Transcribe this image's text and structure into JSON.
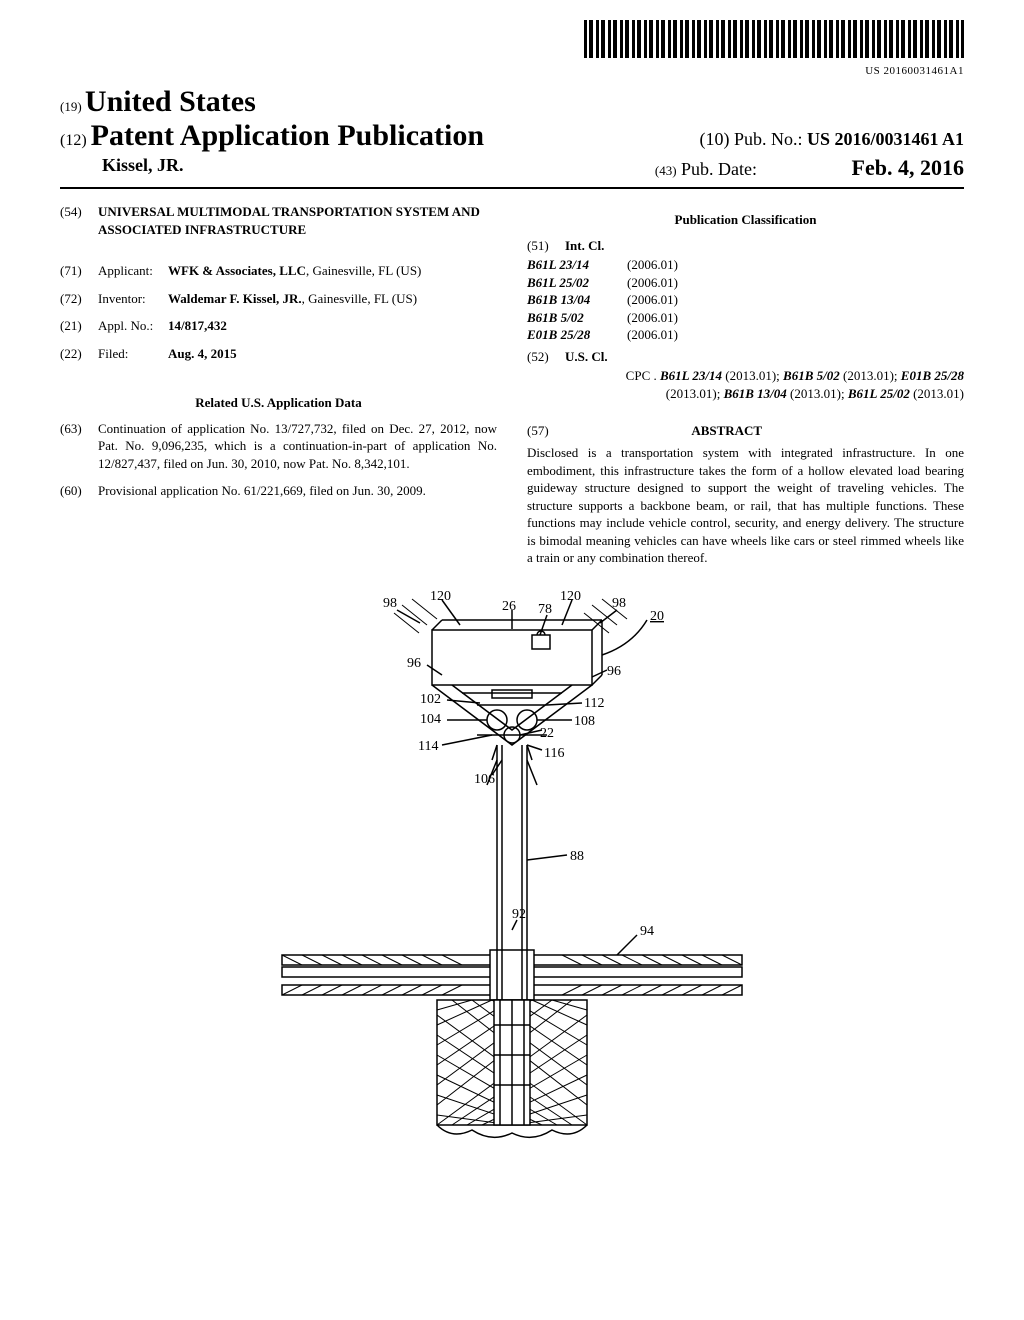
{
  "barcode_label": "US 20160031461A1",
  "header": {
    "prefix19": "(19)",
    "country": "United States",
    "prefix12": "(12)",
    "pub_type": "Patent Application Publication",
    "author": "Kissel, JR.",
    "prefix10": "(10)",
    "pub_no_label": "Pub. No.:",
    "pub_no": "US 2016/0031461 A1",
    "prefix43": "(43)",
    "pub_date_label": "Pub. Date:",
    "pub_date": "Feb. 4, 2016"
  },
  "fields": {
    "n54": "(54)",
    "title": "UNIVERSAL MULTIMODAL TRANSPORTATION SYSTEM AND ASSOCIATED INFRASTRUCTURE",
    "n71": "(71)",
    "applicant_label": "Applicant:",
    "applicant": "WFK & Associates, LLC",
    "applicant_loc": ", Gainesville, FL (US)",
    "n72": "(72)",
    "inventor_label": "Inventor:",
    "inventor": "Waldemar F. Kissel, JR.",
    "inventor_loc": ", Gainesville, FL (US)",
    "n21": "(21)",
    "appl_label": "Appl. No.:",
    "appl_no": "14/817,432",
    "n22": "(22)",
    "filed_label": "Filed:",
    "filed": "Aug. 4, 2015",
    "related_heading": "Related U.S. Application Data",
    "n63": "(63)",
    "related63": "Continuation of application No. 13/727,732, filed on Dec. 27, 2012, now Pat. No. 9,096,235, which is a continuation-in-part of application No. 12/827,437, filed on Jun. 30, 2010, now Pat. No. 8,342,101.",
    "n60": "(60)",
    "related60": "Provisional application No. 61/221,669, filed on Jun. 30, 2009."
  },
  "classification": {
    "heading": "Publication Classification",
    "n51": "(51)",
    "intcl_label": "Int. Cl.",
    "rows": [
      {
        "code": "B61L 23/14",
        "ver": "(2006.01)"
      },
      {
        "code": "B61L 25/02",
        "ver": "(2006.01)"
      },
      {
        "code": "B61B 13/04",
        "ver": "(2006.01)"
      },
      {
        "code": "B61B 5/02",
        "ver": "(2006.01)"
      },
      {
        "code": "E01B 25/28",
        "ver": "(2006.01)"
      }
    ],
    "n52": "(52)",
    "uscl_label": "U.S. Cl.",
    "cpc_label": "CPC .",
    "cpc": "B61L 23/14 (2013.01); B61B 5/02 (2013.01); E01B 25/28 (2013.01); B61B 13/04 (2013.01); B61L 25/02 (2013.01)"
  },
  "abstract": {
    "n57": "(57)",
    "heading": "ABSTRACT",
    "body": "Disclosed is a transportation system with integrated infrastructure. In one embodiment, this infrastructure takes the form of a hollow elevated load bearing guideway structure designed to support the weight of traveling vehicles. The structure supports a backbone beam, or rail, that has multiple functions. These functions may include vehicle control, security, and energy delivery. The structure is bimodal meaning vehicles can have wheels like cars or steel rimmed wheels like a train or any combination thereof."
  },
  "figure": {
    "labels": {
      "l98a": "98",
      "l98b": "98",
      "l120a": "120",
      "l120b": "120",
      "l26": "26",
      "l78": "78",
      "l20": "20",
      "l96a": "96",
      "l96b": "96",
      "l102": "102",
      "l112": "112",
      "l104": "104",
      "l108": "108",
      "l114": "114",
      "l22": "22",
      "l106": "106",
      "l116": "116",
      "l88": "88",
      "l92": "92",
      "l94": "94"
    },
    "stroke": "#000000",
    "fill": "#ffffff",
    "label_fontsize": 14,
    "stroke_width": 1.5
  }
}
